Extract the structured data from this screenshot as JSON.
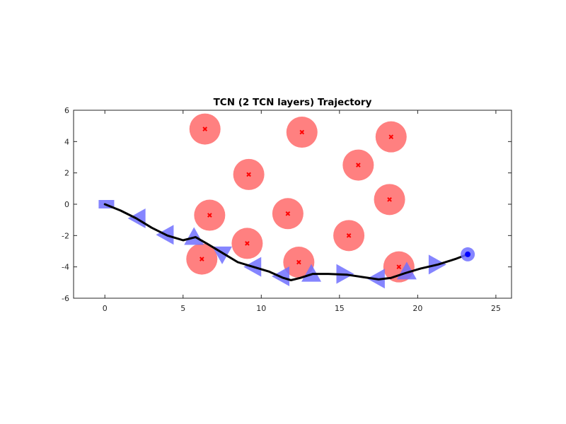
{
  "chart_data": {
    "type": "scatter",
    "title": "TCN (2 TCN layers) Trajectory",
    "xlabel": "",
    "ylabel": "",
    "xlim": [
      -2,
      26
    ],
    "ylim": [
      -6,
      6
    ],
    "xticks": [
      0,
      5,
      10,
      15,
      20,
      25
    ],
    "yticks": [
      -6,
      -4,
      -2,
      0,
      2,
      4,
      6
    ],
    "grid": false,
    "legend": "none",
    "colors": {
      "obstacle": "#ff8080",
      "obstacle_center": "#ff0000",
      "marker": "#7070ff",
      "path": "#000000",
      "goal": "#0000ff"
    },
    "obstacles": [
      {
        "x": 6.4,
        "y": 4.8
      },
      {
        "x": 12.6,
        "y": 4.6
      },
      {
        "x": 18.3,
        "y": 4.3
      },
      {
        "x": 9.2,
        "y": 1.9
      },
      {
        "x": 16.2,
        "y": 2.5
      },
      {
        "x": 18.2,
        "y": 0.3
      },
      {
        "x": 6.7,
        "y": -0.7
      },
      {
        "x": 11.7,
        "y": -0.6
      },
      {
        "x": 15.6,
        "y": -2.0
      },
      {
        "x": 9.1,
        "y": -2.5
      },
      {
        "x": 6.2,
        "y": -3.5
      },
      {
        "x": 12.4,
        "y": -3.7
      },
      {
        "x": 18.8,
        "y": -4.0
      }
    ],
    "path": [
      {
        "x": 0.0,
        "y": 0.0
      },
      {
        "x": 1.0,
        "y": -0.4
      },
      {
        "x": 2.0,
        "y": -0.9
      },
      {
        "x": 3.0,
        "y": -1.5
      },
      {
        "x": 4.0,
        "y": -2.0
      },
      {
        "x": 5.0,
        "y": -2.3
      },
      {
        "x": 5.8,
        "y": -2.1
      },
      {
        "x": 6.5,
        "y": -2.5
      },
      {
        "x": 7.5,
        "y": -3.1
      },
      {
        "x": 8.5,
        "y": -3.7
      },
      {
        "x": 9.5,
        "y": -4.0
      },
      {
        "x": 10.5,
        "y": -4.3
      },
      {
        "x": 11.4,
        "y": -4.7
      },
      {
        "x": 11.9,
        "y": -4.85
      },
      {
        "x": 12.5,
        "y": -4.7
      },
      {
        "x": 13.3,
        "y": -4.45
      },
      {
        "x": 14.3,
        "y": -4.45
      },
      {
        "x": 15.5,
        "y": -4.5
      },
      {
        "x": 16.5,
        "y": -4.65
      },
      {
        "x": 17.5,
        "y": -4.8
      },
      {
        "x": 18.3,
        "y": -4.7
      },
      {
        "x": 19.2,
        "y": -4.4
      },
      {
        "x": 20.2,
        "y": -4.1
      },
      {
        "x": 21.3,
        "y": -3.85
      },
      {
        "x": 22.4,
        "y": -3.5
      },
      {
        "x": 23.2,
        "y": -3.2
      }
    ],
    "markers": [
      {
        "x": 0.1,
        "y": 0.0,
        "shape": "square"
      },
      {
        "x": 2.1,
        "y": -0.9,
        "shape": "triangle-left"
      },
      {
        "x": 3.9,
        "y": -1.95,
        "shape": "triangle-left"
      },
      {
        "x": 5.7,
        "y": -2.1,
        "shape": "triangle-up"
      },
      {
        "x": 7.5,
        "y": -3.2,
        "shape": "triangle-down"
      },
      {
        "x": 9.5,
        "y": -4.0,
        "shape": "triangle-left"
      },
      {
        "x": 11.3,
        "y": -4.6,
        "shape": "triangle-left"
      },
      {
        "x": 13.2,
        "y": -4.45,
        "shape": "triangle-up"
      },
      {
        "x": 15.3,
        "y": -4.45,
        "shape": "triangle-right"
      },
      {
        "x": 17.4,
        "y": -4.75,
        "shape": "triangle-left"
      },
      {
        "x": 19.3,
        "y": -4.3,
        "shape": "triangle-up"
      },
      {
        "x": 21.2,
        "y": -3.85,
        "shape": "triangle-right"
      }
    ],
    "goal": {
      "x": 23.2,
      "y": -3.2
    }
  }
}
